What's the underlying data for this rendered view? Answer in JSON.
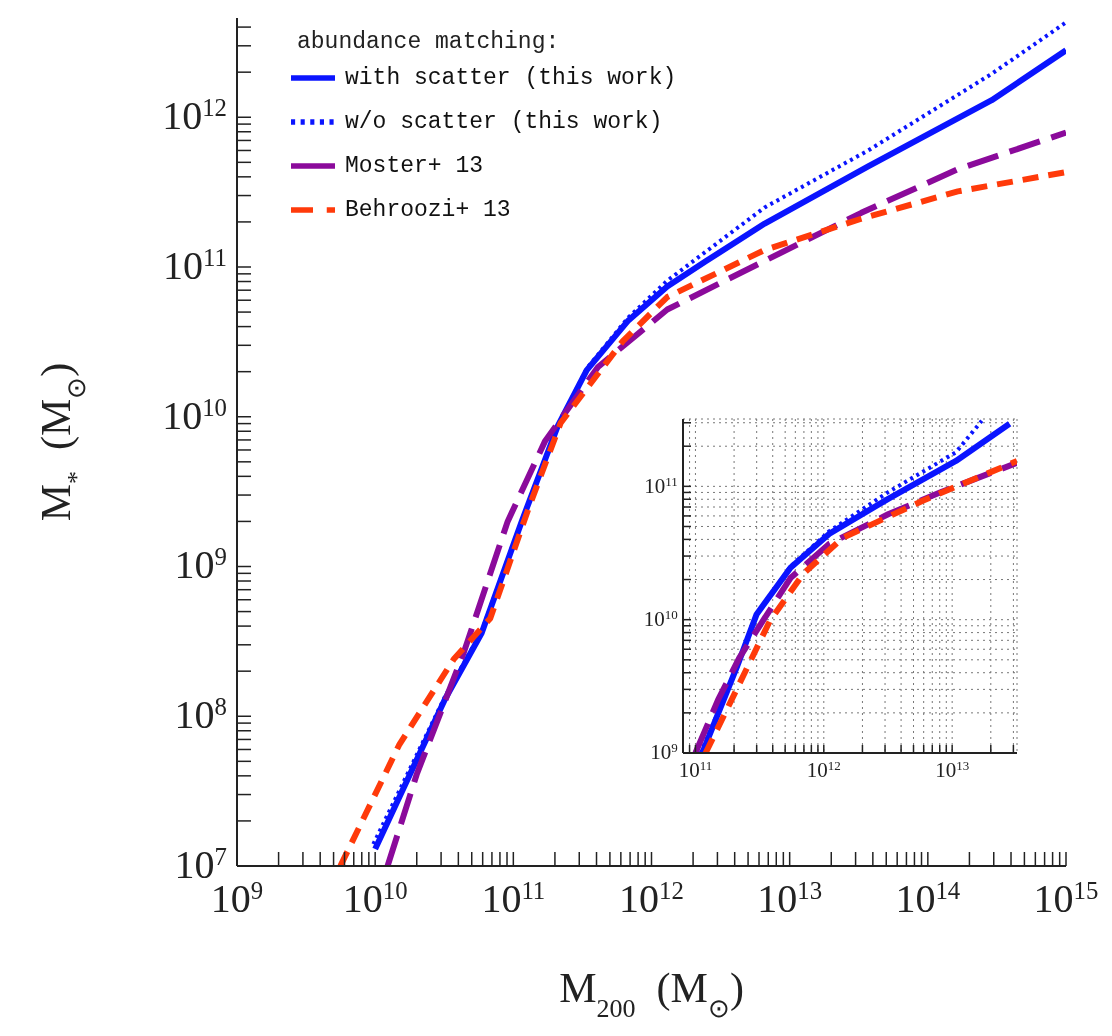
{
  "chart_data": [
    {
      "type": "line",
      "xlabel": "M$_{200}$  (M$_{⊙}$)",
      "ylabel": "M$_{*}$  (M$_{⊙}$)",
      "legend_title": "abundance matching:",
      "legend": "top left",
      "log": "xy",
      "grid": false,
      "xlim": [
        1000000000.0,
        1000000000000000.0
      ],
      "ylim": [
        10000000.0,
        4600000000000.0
      ],
      "xticks": [
        {
          "value": 1000000000.0,
          "label": "10$^{9}$"
        },
        {
          "value": 2000000000.0,
          "label": null
        },
        {
          "value": 3000000000.0,
          "label": null
        },
        {
          "value": 4000000000.0,
          "label": null
        },
        {
          "value": 5000000000.0,
          "label": null
        },
        {
          "value": 6000000000.0,
          "label": null
        },
        {
          "value": 7000000000.0,
          "label": null
        },
        {
          "value": 8000000000.0,
          "label": null
        },
        {
          "value": 9000000000.0,
          "label": null
        },
        {
          "value": 10000000000.0,
          "label": "10$^{10}$"
        },
        {
          "value": 20000000000.0,
          "label": null
        },
        {
          "value": 30000000000.0,
          "label": null
        },
        {
          "value": 40000000000.0,
          "label": null
        },
        {
          "value": 50000000000.0,
          "label": null
        },
        {
          "value": 60000000000.0,
          "label": null
        },
        {
          "value": 70000000000.0,
          "label": null
        },
        {
          "value": 80000000000.0,
          "label": null
        },
        {
          "value": 90000000000.0,
          "label": null
        },
        {
          "value": 100000000000.0,
          "label": "10$^{11}$"
        },
        {
          "value": 200000000000.0,
          "label": null
        },
        {
          "value": 300000000000.0,
          "label": null
        },
        {
          "value": 400000000000.0,
          "label": null
        },
        {
          "value": 500000000000.0,
          "label": null
        },
        {
          "value": 600000000000.0,
          "label": null
        },
        {
          "value": 700000000000.0,
          "label": null
        },
        {
          "value": 800000000000.0,
          "label": null
        },
        {
          "value": 900000000000.0,
          "label": null
        },
        {
          "value": 1000000000000.0,
          "label": "10$^{12}$"
        },
        {
          "value": 2000000000000.0,
          "label": null
        },
        {
          "value": 3000000000000.0,
          "label": null
        },
        {
          "value": 4000000000000.0,
          "label": null
        },
        {
          "value": 5000000000000.0,
          "label": null
        },
        {
          "value": 6000000000000.0,
          "label": null
        },
        {
          "value": 7000000000000.0,
          "label": null
        },
        {
          "value": 8000000000000.0,
          "label": null
        },
        {
          "value": 9000000000000.0,
          "label": null
        },
        {
          "value": 10000000000000.0,
          "label": "10$^{13}$"
        },
        {
          "value": 20000000000000.0,
          "label": null
        },
        {
          "value": 30000000000000.0,
          "label": null
        },
        {
          "value": 40000000000000.0,
          "label": null
        },
        {
          "value": 50000000000000.0,
          "label": null
        },
        {
          "value": 60000000000000.0,
          "label": null
        },
        {
          "value": 70000000000000.0,
          "label": null
        },
        {
          "value": 80000000000000.0,
          "label": null
        },
        {
          "value": 90000000000000.0,
          "label": null
        },
        {
          "value": 100000000000000.0,
          "label": "10$^{14}$"
        },
        {
          "value": 200000000000000.0,
          "label": null
        },
        {
          "value": 300000000000000.0,
          "label": null
        },
        {
          "value": 400000000000000.0,
          "label": null
        },
        {
          "value": 500000000000000.0,
          "label": null
        },
        {
          "value": 600000000000000.0,
          "label": null
        },
        {
          "value": 700000000000000.0,
          "label": null
        },
        {
          "value": 800000000000000.0,
          "label": null
        },
        {
          "value": 900000000000000.0,
          "label": null
        },
        {
          "value": 1000000000000000.0,
          "label": "10$^{15}$"
        }
      ],
      "yticks": [
        {
          "value": 10000000.0,
          "label": "10$^{7}$"
        },
        {
          "value": 20000000.0,
          "label": null
        },
        {
          "value": 30000000.0,
          "label": null
        },
        {
          "value": 40000000.0,
          "label": null
        },
        {
          "value": 50000000.0,
          "label": null
        },
        {
          "value": 60000000.0,
          "label": null
        },
        {
          "value": 70000000.0,
          "label": null
        },
        {
          "value": 80000000.0,
          "label": null
        },
        {
          "value": 90000000.0,
          "label": null
        },
        {
          "value": 100000000.0,
          "label": "10$^{8}$"
        },
        {
          "value": 200000000.0,
          "label": null
        },
        {
          "value": 300000000.0,
          "label": null
        },
        {
          "value": 400000000.0,
          "label": null
        },
        {
          "value": 500000000.0,
          "label": null
        },
        {
          "value": 600000000.0,
          "label": null
        },
        {
          "value": 700000000.0,
          "label": null
        },
        {
          "value": 800000000.0,
          "label": null
        },
        {
          "value": 900000000.0,
          "label": null
        },
        {
          "value": 1000000000.0,
          "label": "10$^{9}$"
        },
        {
          "value": 2000000000.0,
          "label": null
        },
        {
          "value": 3000000000.0,
          "label": null
        },
        {
          "value": 4000000000.0,
          "label": null
        },
        {
          "value": 5000000000.0,
          "label": null
        },
        {
          "value": 6000000000.0,
          "label": null
        },
        {
          "value": 7000000000.0,
          "label": null
        },
        {
          "value": 8000000000.0,
          "label": null
        },
        {
          "value": 9000000000.0,
          "label": null
        },
        {
          "value": 10000000000.0,
          "label": "10$^{10}$"
        },
        {
          "value": 20000000000.0,
          "label": null
        },
        {
          "value": 30000000000.0,
          "label": null
        },
        {
          "value": 40000000000.0,
          "label": null
        },
        {
          "value": 50000000000.0,
          "label": null
        },
        {
          "value": 60000000000.0,
          "label": null
        },
        {
          "value": 70000000000.0,
          "label": null
        },
        {
          "value": 80000000000.0,
          "label": null
        },
        {
          "value": 90000000000.0,
          "label": null
        },
        {
          "value": 100000000000.0,
          "label": "10$^{11}$"
        },
        {
          "value": 200000000000.0,
          "label": null
        },
        {
          "value": 300000000000.0,
          "label": null
        },
        {
          "value": 400000000000.0,
          "label": null
        },
        {
          "value": 500000000000.0,
          "label": null
        },
        {
          "value": 600000000000.0,
          "label": null
        },
        {
          "value": 700000000000.0,
          "label": null
        },
        {
          "value": 800000000000.0,
          "label": null
        },
        {
          "value": 900000000000.0,
          "label": null
        },
        {
          "value": 1000000000000.0,
          "label": "10$^{12}$"
        },
        {
          "value": 2000000000000.0,
          "label": null
        },
        {
          "value": 3000000000000.0,
          "label": null
        },
        {
          "value": 4000000000000.0,
          "label": null
        }
      ],
      "series": [
        {
          "name": "with scatter (this work)",
          "color": "#0a14ff",
          "line_style": "solid",
          "x": [
            10000000000.0,
            32000000000.0,
            59000000000.0,
            115000000000.0,
            210000000000.0,
            340000000000.0,
            680000000000.0,
            1300000000000.0,
            2500000000000.0,
            6600000000000.0,
            37000000000000.0,
            290000000000000.0,
            1000000000000000.0
          ],
          "values": [
            13000000.0,
            130000000.0,
            360000000.0,
            2000000000.0,
            8700000000.0,
            20500000000.0,
            44000000000.0,
            74000000000.0,
            110000000000.0,
            195000000000.0,
            470000000000.0,
            1300000000000.0,
            2800000000000.0
          ]
        },
        {
          "name": "w/o scatter (this work)",
          "color": "#0a14ff",
          "line_style": "dotted",
          "x": [
            9700000000.0,
            32000000000.0,
            59000000000.0,
            115000000000.0,
            210000000000.0,
            340000000000.0,
            680000000000.0,
            1300000000000.0,
            6600000000000.0,
            37000000000000.0,
            290000000000000.0,
            1000000000000000.0
          ],
          "values": [
            14000000.0,
            135000000.0,
            370000000.0,
            2000000000.0,
            8700000000.0,
            21000000000.0,
            46000000000.0,
            81000000000.0,
            250000000000.0,
            600000000000.0,
            1950000000000.0,
            4300000000000.0
          ]
        },
        {
          "name": "Moster+ 13",
          "color": "#8b0a9b",
          "line_style": "dashed",
          "x": [
            12300000000.0,
            20000000000.0,
            44000000000.0,
            91000000000.0,
            170000000000.0,
            410000000000.0,
            1300000000000.0,
            6600000000000.0,
            33000000000000.0,
            165000000000000.0,
            1000000000000000.0
          ],
          "values": [
            10000000.0,
            41000000.0,
            270000000.0,
            2000000000.0,
            6900000000.0,
            21500000000.0,
            52000000000.0,
            110000000000.0,
            230000000000.0,
            450000000000.0,
            790000000000.0
          ]
        },
        {
          "name": "Behroozi+ 13",
          "color": "#ff3a0a",
          "line_style": "dashed",
          "x": [
            5600000000.0,
            15000000000.0,
            37000000000.0,
            68000000000.0,
            130000000000.0,
            220000000000.0,
            620000000000.0,
            1300000000000.0,
            6600000000000.0,
            33000000000000.0,
            165000000000000.0,
            1000000000000000.0
          ],
          "values": [
            10000000.0,
            65000000.0,
            240000000.0,
            450000000.0,
            2500000000.0,
            9100000000.0,
            32000000000.0,
            63000000000.0,
            130000000000.0,
            210000000000.0,
            320000000000.0,
            430000000000.0
          ]
        }
      ]
    },
    {
      "type": "line",
      "log": "xy",
      "grid": true,
      "legend": false,
      "xlim": [
        80000000000.0,
        32000000000000.0
      ],
      "ylim": [
        1000000000.0,
        320000000000.0
      ],
      "xticks": [
        {
          "value": 90000000000.0,
          "label": null
        },
        {
          "value": 100000000000.0,
          "label": "10$^{11}$"
        },
        {
          "value": 200000000000.0,
          "label": null
        },
        {
          "value": 300000000000.0,
          "label": null
        },
        {
          "value": 400000000000.0,
          "label": null
        },
        {
          "value": 500000000000.0,
          "label": null
        },
        {
          "value": 600000000000.0,
          "label": null
        },
        {
          "value": 700000000000.0,
          "label": null
        },
        {
          "value": 800000000000.0,
          "label": null
        },
        {
          "value": 900000000000.0,
          "label": null
        },
        {
          "value": 1000000000000.0,
          "label": "10$^{12}$"
        },
        {
          "value": 2000000000000.0,
          "label": null
        },
        {
          "value": 3000000000000.0,
          "label": null
        },
        {
          "value": 4000000000000.0,
          "label": null
        },
        {
          "value": 5000000000000.0,
          "label": null
        },
        {
          "value": 6000000000000.0,
          "label": null
        },
        {
          "value": 7000000000000.0,
          "label": null
        },
        {
          "value": 8000000000000.0,
          "label": null
        },
        {
          "value": 9000000000000.0,
          "label": null
        },
        {
          "value": 10000000000000.0,
          "label": "10$^{13}$"
        },
        {
          "value": 20000000000000.0,
          "label": null
        },
        {
          "value": 30000000000000.0,
          "label": null
        }
      ],
      "yticks": [
        {
          "value": 1000000000.0,
          "label": "10$^{9}$"
        },
        {
          "value": 2000000000.0,
          "label": null
        },
        {
          "value": 3000000000.0,
          "label": null
        },
        {
          "value": 4000000000.0,
          "label": null
        },
        {
          "value": 5000000000.0,
          "label": null
        },
        {
          "value": 6000000000.0,
          "label": null
        },
        {
          "value": 7000000000.0,
          "label": null
        },
        {
          "value": 8000000000.0,
          "label": null
        },
        {
          "value": 9000000000.0,
          "label": null
        },
        {
          "value": 10000000000.0,
          "label": "10$^{10}$"
        },
        {
          "value": 20000000000.0,
          "label": null
        },
        {
          "value": 30000000000.0,
          "label": null
        },
        {
          "value": 40000000000.0,
          "label": null
        },
        {
          "value": 50000000000.0,
          "label": null
        },
        {
          "value": 60000000000.0,
          "label": null
        },
        {
          "value": 70000000000.0,
          "label": null
        },
        {
          "value": 80000000000.0,
          "label": null
        },
        {
          "value": 90000000000.0,
          "label": null
        },
        {
          "value": 100000000000.0,
          "label": "10$^{11}$"
        },
        {
          "value": 200000000000.0,
          "label": null
        },
        {
          "value": 300000000000.0,
          "label": null
        }
      ],
      "series": [
        {
          "color": "#0a14ff",
          "line_style": "solid",
          "x": [
            113000000000.0,
            210000000000.0,
            300000000000.0,
            550000000000.0,
            1100000000000.0,
            3200000000000.0,
            10700000000000.0,
            28000000000000.0
          ],
          "values": [
            1000000000.0,
            4400000000.0,
            11000000000.0,
            24500000000.0,
            44000000000.0,
            81000000000.0,
            155000000000.0,
            295000000000.0
          ]
        },
        {
          "color": "#0a14ff",
          "line_style": "dotted",
          "x": [
            110000000000.0,
            210000000000.0,
            300000000000.0,
            550000000000.0,
            1100000000000.0,
            3200000000000.0,
            10700000000000.0,
            17000000000000.0
          ],
          "values": [
            1000000000.0,
            4400000000.0,
            11000000000.0,
            25000000000.0,
            46000000000.0,
            91000000000.0,
            180000000000.0,
            310000000000.0
          ]
        },
        {
          "color": "#8b0a9b",
          "line_style": "dashed",
          "x": [
            100000000000.0,
            150000000000.0,
            220000000000.0,
            340000000000.0,
            550000000000.0,
            1100000000000.0,
            3200000000000.0,
            8300000000000.0,
            32000000000000.0
          ],
          "values": [
            1000000000.0,
            2500000000.0,
            5200000000.0,
            10000000000.0,
            20500000000.0,
            37000000000.0,
            62000000000.0,
            91000000000.0,
            150000000000.0
          ]
        },
        {
          "color": "#ff3a0a",
          "line_style": "dashed",
          "x": [
            120000000000.0,
            195000000000.0,
            380000000000.0,
            690000000000.0,
            1400000000000.0,
            5900000000000.0,
            32000000000000.0
          ],
          "values": [
            1000000000.0,
            2600000000.0,
            9800000000.0,
            22000000000.0,
            41000000000.0,
            78000000000.0,
            155000000000.0
          ]
        }
      ]
    }
  ]
}
